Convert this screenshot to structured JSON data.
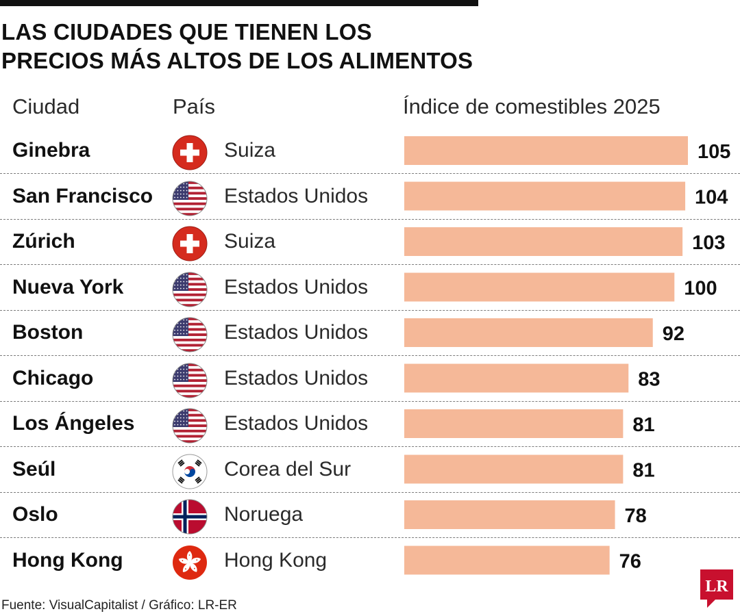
{
  "title": {
    "line1": "LAS CIUDADES QUE TIENEN LOS",
    "line2": "PRECIOS MÁS ALTOS DE LOS ALIMENTOS"
  },
  "headers": {
    "city": "Ciudad",
    "country": "País",
    "index": "Índice de comestibles 2025"
  },
  "rows": [
    {
      "city": "Ginebra",
      "country": "Suiza",
      "flag": "switzerland-flag-icon",
      "value": "105"
    },
    {
      "city": "San Francisco",
      "country": "Estados Unidos",
      "flag": "usa-flag-icon",
      "value": "104"
    },
    {
      "city": "Zúrich",
      "country": "Suiza",
      "flag": "switzerland-flag-icon",
      "value": "103"
    },
    {
      "city": "Nueva York",
      "country": "Estados Unidos",
      "flag": "usa-flag-icon",
      "value": "100"
    },
    {
      "city": "Boston",
      "country": "Estados Unidos",
      "flag": "usa-flag-icon",
      "value": "92"
    },
    {
      "city": "Chicago",
      "country": "Estados Unidos",
      "flag": "usa-flag-icon",
      "value": "83"
    },
    {
      "city": "Los Ángeles",
      "country": "Estados Unidos",
      "flag": "usa-flag-icon",
      "value": "81"
    },
    {
      "city": "Seúl",
      "country": "Corea del Sur",
      "flag": "south-korea-flag-icon",
      "value": "81"
    },
    {
      "city": "Oslo",
      "country": "Noruega",
      "flag": "norway-flag-icon",
      "value": "78"
    },
    {
      "city": "Hong Kong",
      "country": "Hong Kong",
      "flag": "hong-kong-flag-icon",
      "value": "76"
    }
  ],
  "chart_data": {
    "type": "bar",
    "orientation": "horizontal",
    "categories": [
      "Ginebra",
      "San Francisco",
      "Zúrich",
      "Nueva York",
      "Boston",
      "Chicago",
      "Los Ángeles",
      "Seúl",
      "Oslo",
      "Hong Kong"
    ],
    "values": [
      105,
      104,
      103,
      100,
      92,
      83,
      81,
      81,
      78,
      76
    ],
    "title": "LAS CIUDADES QUE TIENEN LOS PRECIOS MÁS ALTOS DE LOS ALIMENTOS",
    "xlabel": "Índice de comestibles 2025",
    "ylabel": "",
    "xlim": [
      0,
      105
    ],
    "grid": false,
    "legend": "none",
    "bar_color": "#f5b898"
  },
  "source": "Fuente: VisualCapitalist / Gráfico: LR-ER",
  "logo": {
    "text": "LR",
    "color": "#c8102e",
    "icon": "lr-logo-icon"
  },
  "colors": {
    "bar": "#f5b898",
    "swiss_red": "#d52b1e",
    "norway_red": "#ba0c2f",
    "norway_blue": "#00205b",
    "hk_red": "#de2910",
    "usa_red": "#b22234",
    "usa_blue": "#3c3b6e"
  }
}
